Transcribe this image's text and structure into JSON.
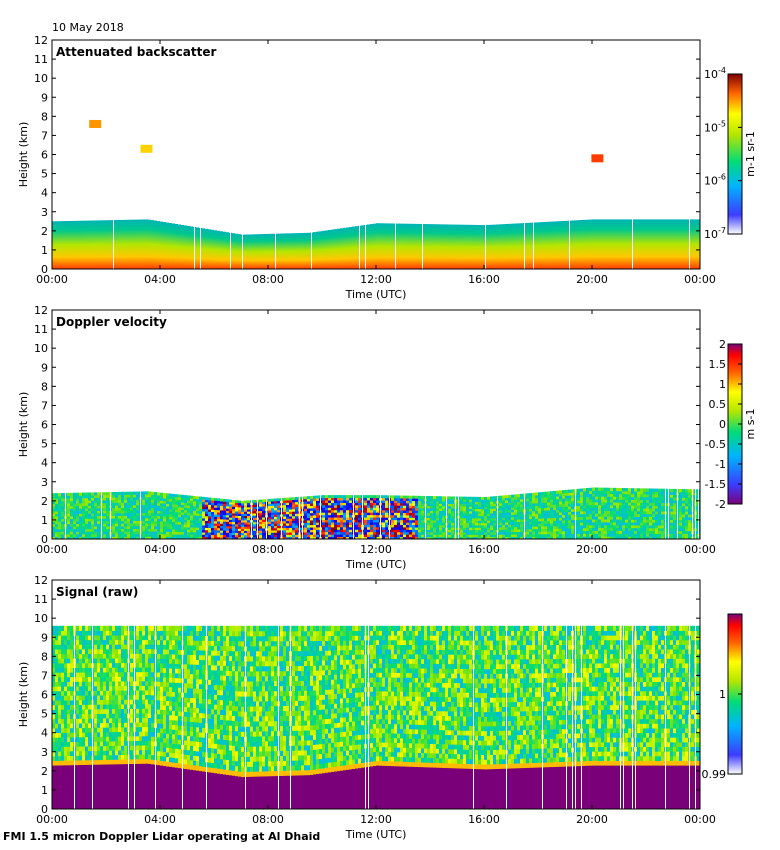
{
  "date_label": "10 May 2018",
  "footer": "FMI 1.5 micron Doppler Lidar operating at Al Dhaid",
  "colors": {
    "profile_fill": "#7a007a",
    "missing": "#ffffff"
  },
  "chart_data": [
    {
      "type": "heatmap",
      "title": "Attenuated backscatter",
      "xlabel": "Time (UTC)",
      "ylabel": "Height (km)",
      "xlim": [
        0,
        24
      ],
      "ylim": [
        0,
        12
      ],
      "x_tick_labels": [
        "00:00",
        "04:00",
        "08:00",
        "12:00",
        "16:00",
        "20:00",
        "00:00"
      ],
      "y_tick_labels": [
        "0",
        "1",
        "2",
        "3",
        "4",
        "5",
        "6",
        "7",
        "8",
        "9",
        "10",
        "11",
        "12"
      ],
      "colorbar": {
        "tick_labels": [
          "10-4",
          "10-5",
          "10-6",
          "10-7"
        ],
        "unit": "m-1 sr-1",
        "range": [
          1e-07,
          0.0001
        ],
        "scale": "log"
      },
      "boundary_layer_top_km": [
        [
          0,
          2.5
        ],
        [
          3.5,
          2.6
        ],
        [
          7,
          1.8
        ],
        [
          9.5,
          1.9
        ],
        [
          12,
          2.4
        ],
        [
          16,
          2.3
        ],
        [
          20,
          2.6
        ],
        [
          24,
          2.6
        ]
      ],
      "features": [
        {
          "name": "aerosol layer 01:40",
          "time_h": 1.6,
          "height_km": 7.6,
          "level": "1e-5"
        },
        {
          "name": "aerosol layer 03:30",
          "time_h": 3.5,
          "height_km": 6.3,
          "level": "3e-6"
        },
        {
          "name": "cloud 20:00",
          "time_h": 20.2,
          "height_km": 5.8,
          "level": "8e-5"
        }
      ]
    },
    {
      "type": "heatmap",
      "title": "Doppler velocity",
      "xlabel": "Time (UTC)",
      "ylabel": "Height (km)",
      "xlim": [
        0,
        24
      ],
      "ylim": [
        0,
        12
      ],
      "x_tick_labels": [
        "00:00",
        "04:00",
        "08:00",
        "12:00",
        "16:00",
        "20:00",
        "00:00"
      ],
      "y_tick_labels": [
        "0",
        "1",
        "2",
        "3",
        "4",
        "5",
        "6",
        "7",
        "8",
        "9",
        "10",
        "11",
        "12"
      ],
      "colorbar": {
        "tick_labels": [
          "2",
          "1.5",
          "1",
          "0.5",
          "0",
          "-0.5",
          "-1",
          "-1.5",
          "-2"
        ],
        "unit": "m s-1",
        "range": [
          -2,
          2
        ]
      },
      "boundary_layer_top_km": [
        [
          0,
          2.4
        ],
        [
          3.5,
          2.5
        ],
        [
          7,
          2.0
        ],
        [
          10,
          2.3
        ],
        [
          12,
          2.3
        ],
        [
          16,
          2.2
        ],
        [
          20,
          2.7
        ],
        [
          24,
          2.6
        ]
      ],
      "convective_period_h": [
        5.5,
        13.5
      ]
    },
    {
      "type": "heatmap",
      "title": "Signal (raw)",
      "xlabel": "Time (UTC)",
      "ylabel": "Height (km)",
      "xlim": [
        0,
        24
      ],
      "ylim": [
        0,
        12
      ],
      "x_tick_labels": [
        "00:00",
        "04:00",
        "08:00",
        "12:00",
        "16:00",
        "20:00",
        "00:00"
      ],
      "y_tick_labels": [
        "0",
        "1",
        "2",
        "3",
        "4",
        "5",
        "6",
        "7",
        "8",
        "9",
        "10",
        "11",
        "12"
      ],
      "colorbar": {
        "tick_labels": [
          "1",
          "0.99"
        ],
        "range": [
          0.99,
          1.01
        ]
      },
      "data_top_km": 9.6,
      "saturated_layer_top_km": [
        [
          0,
          2.3
        ],
        [
          3.5,
          2.4
        ],
        [
          7,
          1.7
        ],
        [
          9.5,
          1.8
        ],
        [
          12,
          2.3
        ],
        [
          16,
          2.1
        ],
        [
          20,
          2.3
        ],
        [
          24,
          2.3
        ]
      ]
    }
  ]
}
